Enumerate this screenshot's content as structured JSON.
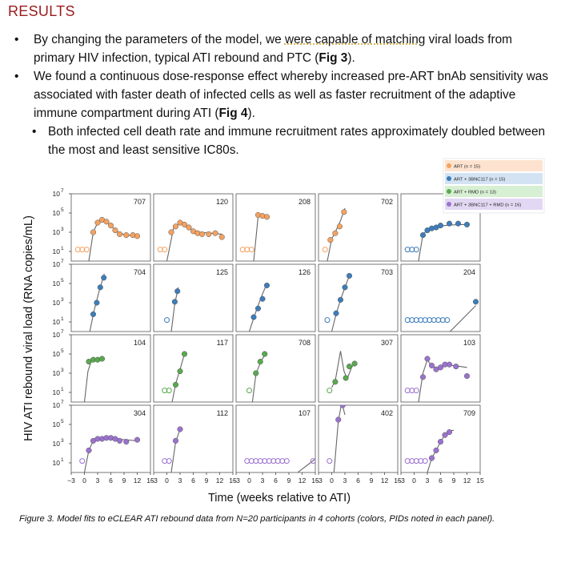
{
  "heading": "RESULTS",
  "bullets": [
    {
      "level": 1,
      "pre": "By changing the parameters of the model, we ",
      "underlined": "were capable of matching",
      "post": " viral loads from primary HIV infection, typical ATI rebound and PTC (",
      "bold": "Fig 3",
      "end": ")."
    },
    {
      "level": 1,
      "pre": "We found a continuous dose-response effect whereby increased pre-ART bnAb sensitivity was associated with faster death of infected cells as well as faster recruitment of the adaptive immune compartment during ATI (",
      "underlined": "",
      "post": "",
      "bold": "Fig 4",
      "end": ")."
    },
    {
      "level": 2,
      "pre": "Both infected cell death rate and immune recruitment rates approximately doubled between the most and least sensitive IC80s.",
      "underlined": "",
      "post": "",
      "bold": "",
      "end": ""
    }
  ],
  "caption": "Figure 3. Model fits to eCLEAR ATI rebound data from N=20 participants in 4 cohorts (colors, PIDs noted in each panel).",
  "chart_data": {
    "type": "scatter",
    "ylabel": "HIV ATI rebound viral load (RNA copies/mL)",
    "xlabel": "Time (weeks relative to ATI)",
    "xlim": [
      -3,
      15
    ],
    "ylim_log10": [
      0,
      7
    ],
    "x_ticks": [
      "−3",
      "0",
      "3",
      "6",
      "9",
      "12",
      "15"
    ],
    "y_ticks": [
      {
        "exp": 7,
        "base": "10"
      },
      {
        "exp": 5,
        "base": "10"
      },
      {
        "exp": 3,
        "base": "10"
      },
      {
        "exp": 1,
        "base": "10"
      }
    ],
    "legend": {
      "placement": "top-right",
      "entries": [
        {
          "label": "ART (n = 15)",
          "color": "#f4a261",
          "bg": "#fde3cf"
        },
        {
          "label": "ART + 3BNC117 (n = 15)",
          "color": "#3d7dbb",
          "bg": "#d3e3f4"
        },
        {
          "label": "ART + RMD  (n = 13)",
          "color": "#5aa84f",
          "bg": "#d7efd2"
        },
        {
          "label": "ART + 3BNC117 + RMD  (n = 16)",
          "color": "#9b72cf",
          "bg": "#e3d8f3"
        }
      ]
    },
    "colors": {
      "ART": "#f4a261",
      "ART + 3BNC117": "#3d7dbb",
      "ART + RMD": "#5aa84f",
      "ART + 3BNC117 + RMD": "#9b72cf",
      "model": "#666666"
    },
    "panels": [
      {
        "pid": "707",
        "cohort": "ART",
        "cens": [
          -1.5,
          -0.5,
          0.5
        ],
        "pts": [
          [
            2,
            3
          ],
          [
            3,
            4
          ],
          [
            4,
            4.3
          ],
          [
            5,
            4.1
          ],
          [
            6,
            3.7
          ],
          [
            7,
            3.2
          ],
          [
            8,
            2.8
          ],
          [
            9.5,
            2.7
          ],
          [
            11,
            2.7
          ],
          [
            12,
            2.6
          ]
        ],
        "fit": [
          [
            1,
            0
          ],
          [
            2,
            3
          ],
          [
            3,
            4
          ],
          [
            4,
            4.3
          ],
          [
            5,
            4.1
          ],
          [
            6,
            3.7
          ],
          [
            7,
            3.2
          ],
          [
            8,
            2.9
          ],
          [
            9.5,
            2.7
          ],
          [
            12,
            2.6
          ]
        ]
      },
      {
        "pid": "120",
        "cohort": "ART",
        "cens": [
          -1.5,
          -0.5
        ],
        "pts": [
          [
            1,
            3
          ],
          [
            2,
            3.6
          ],
          [
            3,
            4
          ],
          [
            4,
            3.8
          ],
          [
            5,
            3.5
          ],
          [
            6,
            3.1
          ],
          [
            7,
            2.9
          ],
          [
            8,
            2.8
          ],
          [
            9.5,
            2.8
          ],
          [
            11,
            2.9
          ],
          [
            12.5,
            2.5
          ]
        ],
        "fit": [
          [
            0,
            0
          ],
          [
            1.5,
            3.4
          ],
          [
            3,
            4
          ],
          [
            4.5,
            3.6
          ],
          [
            6,
            3.2
          ],
          [
            7.5,
            3
          ],
          [
            10,
            2.9
          ],
          [
            12.5,
            2.8
          ]
        ]
      },
      {
        "pid": "208",
        "cohort": "ART",
        "cens": [
          -1.5,
          -0.5,
          0.5
        ],
        "pts": [
          [
            2,
            4.8
          ],
          [
            3,
            4.7
          ],
          [
            4,
            4.6
          ]
        ],
        "fit": [
          [
            1,
            0
          ],
          [
            2,
            4.6
          ],
          [
            3,
            4.8
          ],
          [
            4,
            4.6
          ]
        ]
      },
      {
        "pid": "702",
        "cohort": "ART",
        "cens": [
          -1.5
        ],
        "pts": [
          [
            -0.3,
            2.2
          ],
          [
            0.8,
            2.9
          ],
          [
            1.8,
            3.6
          ],
          [
            2.8,
            5.1
          ]
        ],
        "fit": [
          [
            -1,
            0
          ],
          [
            0,
            2.3
          ],
          [
            1,
            3.2
          ],
          [
            2,
            4.2
          ],
          [
            3,
            5.5
          ]
        ]
      },
      {
        "pid": "",
        "cohort": "ART + 3BNC117",
        "cens": [
          -1.5,
          -0.5,
          0.5
        ],
        "pts": [
          [
            2,
            2.7
          ],
          [
            3,
            3.2
          ],
          [
            4,
            3.4
          ],
          [
            5,
            3.5
          ],
          [
            6,
            3.7
          ],
          [
            8,
            3.9
          ],
          [
            10,
            3.9
          ],
          [
            12,
            3.8
          ]
        ],
        "fit": [
          [
            1,
            0
          ],
          [
            2,
            2.8
          ],
          [
            3,
            3.2
          ],
          [
            5,
            3.5
          ],
          [
            7,
            3.7
          ],
          [
            10,
            3.8
          ],
          [
            12,
            3.8
          ]
        ]
      },
      {
        "pid": "704",
        "cohort": "ART + 3BNC117",
        "cens": [],
        "pts": [
          [
            2,
            1.8
          ],
          [
            2.8,
            3
          ],
          [
            3.6,
            4.6
          ],
          [
            4.4,
            5.6
          ]
        ],
        "fit": [
          [
            1,
            -0.5
          ],
          [
            2.2,
            2.2
          ],
          [
            3.4,
            4.3
          ],
          [
            4.5,
            6
          ]
        ]
      },
      {
        "pid": "125",
        "cohort": "ART + 3BNC117",
        "cens": [
          0
        ],
        "pts": [
          [
            1.8,
            3.1
          ],
          [
            2.4,
            4.2
          ]
        ],
        "fit": [
          [
            1,
            0
          ],
          [
            1.8,
            2.9
          ],
          [
            2.6,
            4.6
          ]
        ]
      },
      {
        "pid": "126",
        "cohort": "ART + 3BNC117",
        "cens": [],
        "pts": [
          [
            1,
            1.5
          ],
          [
            2,
            2.4
          ],
          [
            3,
            3.4
          ],
          [
            4,
            4.8
          ]
        ],
        "fit": [
          [
            0,
            0
          ],
          [
            1,
            1.4
          ],
          [
            2,
            2.7
          ],
          [
            3,
            3.9
          ],
          [
            4,
            5
          ]
        ]
      },
      {
        "pid": "703",
        "cohort": "ART + 3BNC117",
        "cens": [
          -1
        ],
        "pts": [
          [
            1,
            1.9
          ],
          [
            2,
            3.3
          ],
          [
            3,
            4.6
          ],
          [
            4,
            5.8
          ]
        ],
        "fit": [
          [
            0,
            0
          ],
          [
            1,
            1.8
          ],
          [
            2,
            3.3
          ],
          [
            3,
            4.6
          ],
          [
            4,
            5.8
          ]
        ]
      },
      {
        "pid": "204",
        "cohort": "ART + 3BNC117",
        "cens": [
          -1.5,
          -0.5,
          0.5,
          1.5,
          2.5,
          3.5,
          4.5,
          5.5,
          6.5,
          7.5
        ],
        "pts": [
          [
            14,
            3.1
          ]
        ],
        "fit": [
          [
            6,
            -1
          ],
          [
            14,
            2.7
          ]
        ]
      },
      {
        "pid": "104",
        "cohort": "ART + RMD",
        "cens": [],
        "pts": [
          [
            1,
            4.2
          ],
          [
            2,
            4.4
          ],
          [
            3,
            4.4
          ],
          [
            4,
            4.5
          ]
        ],
        "fit": [
          [
            0,
            0
          ],
          [
            0.8,
            3.2
          ],
          [
            1.5,
            4.2
          ],
          [
            3,
            4.4
          ],
          [
            4,
            4.5
          ]
        ]
      },
      {
        "pid": "117",
        "cohort": "ART + RMD",
        "cens": [
          -0.5,
          0.5
        ],
        "pts": [
          [
            2,
            1.8
          ],
          [
            3,
            3.2
          ],
          [
            4,
            5
          ]
        ],
        "fit": [
          [
            1.2,
            0
          ],
          [
            2,
            1.9
          ],
          [
            3,
            3.4
          ],
          [
            4,
            5
          ]
        ]
      },
      {
        "pid": "708",
        "cohort": "ART + RMD",
        "cens": [
          0
        ],
        "pts": [
          [
            1.5,
            3
          ],
          [
            2.5,
            4.2
          ],
          [
            3.5,
            5
          ]
        ],
        "fit": [
          [
            0.7,
            0
          ],
          [
            1.5,
            2.9
          ],
          [
            2.5,
            4.1
          ],
          [
            3.5,
            4.9
          ]
        ]
      },
      {
        "pid": "307",
        "cohort": "ART + RMD",
        "cens": [
          -0.5
        ],
        "pts": [
          [
            0.8,
            2.1
          ],
          [
            3.2,
            2.5
          ],
          [
            4,
            3.7
          ],
          [
            5.2,
            4
          ]
        ],
        "fit": [
          [
            0,
            1.5
          ],
          [
            0.8,
            2.2
          ],
          [
            2,
            5.3
          ],
          [
            2.8,
            3.2
          ],
          [
            3.5,
            2.4
          ],
          [
            4.5,
            3.6
          ],
          [
            5.5,
            4.2
          ]
        ]
      },
      {
        "pid": "103",
        "cohort": "ART + 3BNC117 + RMD",
        "cens": [
          -1.5,
          -0.5,
          0.5
        ],
        "pts": [
          [
            2,
            2.6
          ],
          [
            3,
            4.5
          ],
          [
            4,
            3.8
          ],
          [
            5,
            3.4
          ],
          [
            6,
            3.6
          ],
          [
            7,
            3.9
          ],
          [
            8,
            3.9
          ],
          [
            9.5,
            3.7
          ],
          [
            12,
            2.7
          ]
        ],
        "fit": [
          [
            1,
            0
          ],
          [
            2,
            3
          ],
          [
            3,
            4.4
          ],
          [
            4,
            3.7
          ],
          [
            5.5,
            3.5
          ],
          [
            7,
            3.8
          ],
          [
            9,
            3.8
          ],
          [
            12,
            3.6
          ]
        ]
      },
      {
        "pid": "304",
        "cohort": "ART + 3BNC117 + RMD",
        "cens": [
          -0.5
        ],
        "pts": [
          [
            1,
            2.3
          ],
          [
            2,
            3.3
          ],
          [
            3,
            3.5
          ],
          [
            4,
            3.5
          ],
          [
            5,
            3.6
          ],
          [
            6,
            3.6
          ],
          [
            7,
            3.5
          ],
          [
            8,
            3.3
          ],
          [
            9.5,
            3.2
          ],
          [
            12,
            3.4
          ]
        ],
        "fit": [
          [
            0,
            0
          ],
          [
            1,
            2.3
          ],
          [
            2,
            3.3
          ],
          [
            4,
            3.6
          ],
          [
            7,
            3.5
          ],
          [
            12,
            3.3
          ]
        ]
      },
      {
        "pid": "112",
        "cohort": "ART + 3BNC117 + RMD",
        "cens": [
          -0.5,
          0.5
        ],
        "pts": [
          [
            2,
            3.3
          ],
          [
            3,
            4.5
          ]
        ],
        "fit": [
          [
            1,
            0
          ],
          [
            2,
            3.2
          ],
          [
            3,
            4.5
          ]
        ]
      },
      {
        "pid": "107",
        "cohort": "ART + 3BNC117 + RMD",
        "cens": [
          -0.5,
          0.5,
          1.5,
          2.5,
          3.5,
          4.5,
          5.5,
          6.5,
          7.5,
          8.5,
          14.5
        ],
        "pts": [],
        "fit": [
          [
            11,
            0
          ],
          [
            15,
            1.4
          ]
        ]
      },
      {
        "pid": "402",
        "cohort": "ART + 3BNC117 + RMD",
        "cens": [
          -0.5
        ],
        "pts": [
          [
            1.5,
            5.5
          ],
          [
            2.5,
            7
          ]
        ],
        "fit": [
          [
            0.5,
            0
          ],
          [
            1.5,
            5.4
          ],
          [
            2.3,
            7.3
          ],
          [
            3,
            6
          ]
        ]
      },
      {
        "pid": "709",
        "cohort": "ART + 3BNC117 + RMD",
        "cens": [
          -1.5,
          -0.5,
          0.5,
          1.5,
          2.5
        ],
        "pts": [
          [
            4,
            1.5
          ],
          [
            5,
            2.3
          ],
          [
            6,
            3.2
          ],
          [
            7,
            3.9
          ],
          [
            8,
            4.2
          ]
        ],
        "fit": [
          [
            3,
            0
          ],
          [
            4,
            1.5
          ],
          [
            5,
            2.3
          ],
          [
            6,
            3.2
          ],
          [
            7,
            3.9
          ],
          [
            8,
            4.3
          ],
          [
            9,
            4.4
          ]
        ]
      }
    ]
  }
}
